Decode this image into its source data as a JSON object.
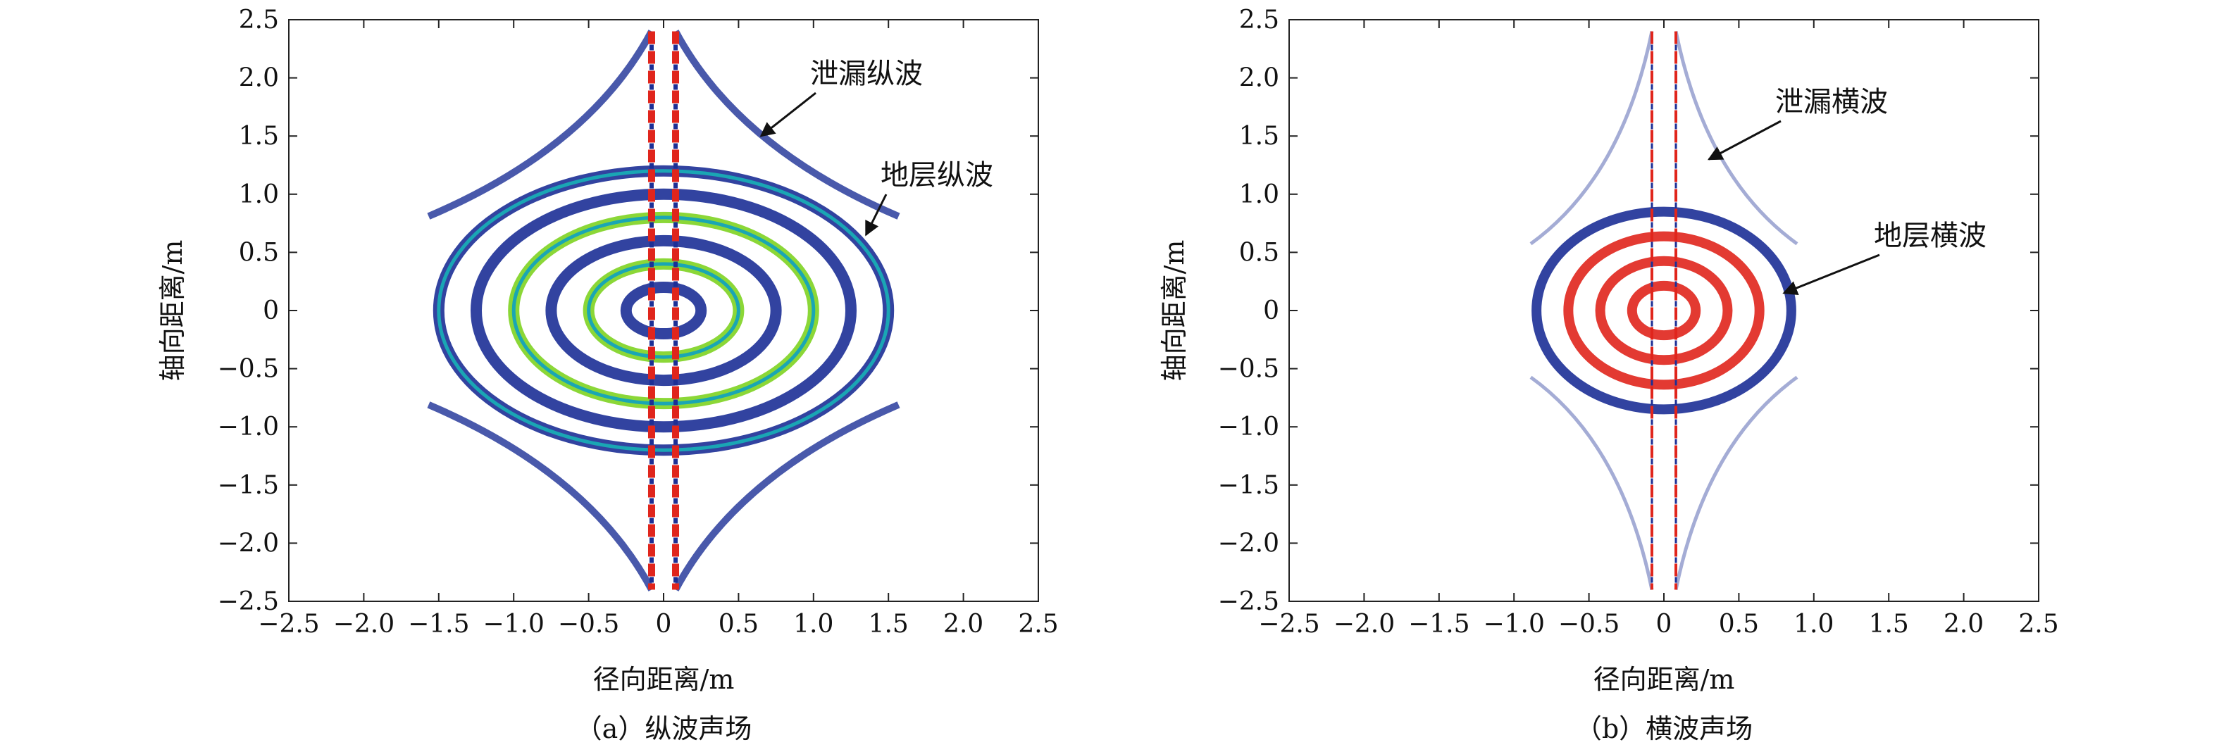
{
  "chart_data": [
    {
      "type": "heatmap",
      "caption": "（a）纵波声场",
      "xlabel": "径向距离/m",
      "ylabel": "轴向距离/m",
      "xlim": [
        -2.5,
        2.5
      ],
      "ylim": [
        -2.5,
        2.5
      ],
      "xticks": [
        "−2.5",
        "−2.0",
        "−1.5",
        "−1.0",
        "−0.5",
        "0",
        "0.5",
        "1.0",
        "1.5",
        "2.0",
        "2.5"
      ],
      "yticks": [
        "2.5",
        "2.0",
        "1.5",
        "1.0",
        "0.5",
        "0",
        "−0.5",
        "−1.0",
        "−1.5",
        "−2.0",
        "−2.5"
      ],
      "annotations": [
        {
          "text": "泄漏纵波",
          "arrow_to": [
            0.65,
            1.5
          ]
        },
        {
          "text": "地层纵波",
          "arrow_to": [
            1.35,
            0.65
          ]
        }
      ],
      "wavefronts": {
        "formation_wave_extent": {
          "radial_max": 1.5,
          "axial_max": 1.2
        },
        "leaky_wave_extent": {
          "axial_max": 2.4
        },
        "borehole_column_halfwidth": 0.08
      },
      "colors": {
        "low": "#1c2f96",
        "mid": "#1aa6b4",
        "midhigh": "#7ed321",
        "high": "#e0251c"
      }
    },
    {
      "type": "heatmap",
      "caption": "（b）横波声场",
      "xlabel": "径向距离/m",
      "ylabel": "轴向距离/m",
      "xlim": [
        -2.5,
        2.5
      ],
      "ylim": [
        -2.5,
        2.5
      ],
      "xticks": [
        "−2.5",
        "−2.0",
        "−1.5",
        "−1.0",
        "−0.5",
        "0",
        "0.5",
        "1.0",
        "1.5",
        "2.0",
        "2.5"
      ],
      "yticks": [
        "2.5",
        "2.0",
        "1.5",
        "1.0",
        "0.5",
        "0",
        "−0.5",
        "−1.0",
        "−1.5",
        "−2.0",
        "−2.5"
      ],
      "annotations": [
        {
          "text": "泄漏横波",
          "arrow_to": [
            0.3,
            1.3
          ]
        },
        {
          "text": "地层横波",
          "arrow_to": [
            0.8,
            0.15
          ]
        }
      ],
      "wavefronts": {
        "formation_wave_extent": {
          "radial_max": 0.85,
          "axial_max": 0.85
        },
        "leaky_wave_extent": {
          "axial_max": 2.4
        },
        "borehole_column_halfwidth": 0.08
      },
      "colors": {
        "low": "#1c2f96",
        "mid": "#1aa6b4",
        "midhigh": "#7ed321",
        "high": "#e0251c"
      }
    }
  ]
}
